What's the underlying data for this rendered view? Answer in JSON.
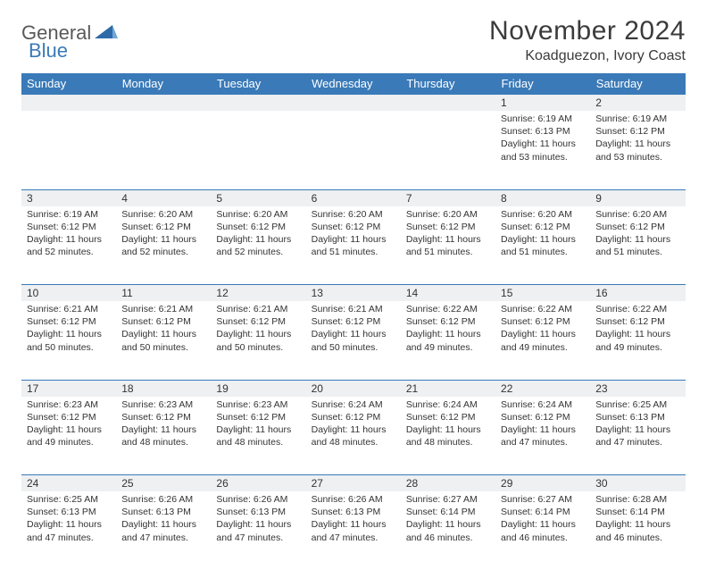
{
  "brand": {
    "part1": "General",
    "part2": "Blue"
  },
  "title": "November 2024",
  "location": "Koadguezon, Ivory Coast",
  "colors": {
    "header_bg": "#3a7ab8",
    "header_text": "#ffffff",
    "daynum_bg": "#eef0f2",
    "border": "#3a7ab8",
    "text": "#333333",
    "title_text": "#3b3b3b"
  },
  "day_headers": [
    "Sunday",
    "Monday",
    "Tuesday",
    "Wednesday",
    "Thursday",
    "Friday",
    "Saturday"
  ],
  "weeks": [
    [
      null,
      null,
      null,
      null,
      null,
      {
        "n": "1",
        "sr": "6:19 AM",
        "ss": "6:13 PM",
        "dl": "11 hours and 53 minutes."
      },
      {
        "n": "2",
        "sr": "6:19 AM",
        "ss": "6:12 PM",
        "dl": "11 hours and 53 minutes."
      }
    ],
    [
      {
        "n": "3",
        "sr": "6:19 AM",
        "ss": "6:12 PM",
        "dl": "11 hours and 52 minutes."
      },
      {
        "n": "4",
        "sr": "6:20 AM",
        "ss": "6:12 PM",
        "dl": "11 hours and 52 minutes."
      },
      {
        "n": "5",
        "sr": "6:20 AM",
        "ss": "6:12 PM",
        "dl": "11 hours and 52 minutes."
      },
      {
        "n": "6",
        "sr": "6:20 AM",
        "ss": "6:12 PM",
        "dl": "11 hours and 51 minutes."
      },
      {
        "n": "7",
        "sr": "6:20 AM",
        "ss": "6:12 PM",
        "dl": "11 hours and 51 minutes."
      },
      {
        "n": "8",
        "sr": "6:20 AM",
        "ss": "6:12 PM",
        "dl": "11 hours and 51 minutes."
      },
      {
        "n": "9",
        "sr": "6:20 AM",
        "ss": "6:12 PM",
        "dl": "11 hours and 51 minutes."
      }
    ],
    [
      {
        "n": "10",
        "sr": "6:21 AM",
        "ss": "6:12 PM",
        "dl": "11 hours and 50 minutes."
      },
      {
        "n": "11",
        "sr": "6:21 AM",
        "ss": "6:12 PM",
        "dl": "11 hours and 50 minutes."
      },
      {
        "n": "12",
        "sr": "6:21 AM",
        "ss": "6:12 PM",
        "dl": "11 hours and 50 minutes."
      },
      {
        "n": "13",
        "sr": "6:21 AM",
        "ss": "6:12 PM",
        "dl": "11 hours and 50 minutes."
      },
      {
        "n": "14",
        "sr": "6:22 AM",
        "ss": "6:12 PM",
        "dl": "11 hours and 49 minutes."
      },
      {
        "n": "15",
        "sr": "6:22 AM",
        "ss": "6:12 PM",
        "dl": "11 hours and 49 minutes."
      },
      {
        "n": "16",
        "sr": "6:22 AM",
        "ss": "6:12 PM",
        "dl": "11 hours and 49 minutes."
      }
    ],
    [
      {
        "n": "17",
        "sr": "6:23 AM",
        "ss": "6:12 PM",
        "dl": "11 hours and 49 minutes."
      },
      {
        "n": "18",
        "sr": "6:23 AM",
        "ss": "6:12 PM",
        "dl": "11 hours and 48 minutes."
      },
      {
        "n": "19",
        "sr": "6:23 AM",
        "ss": "6:12 PM",
        "dl": "11 hours and 48 minutes."
      },
      {
        "n": "20",
        "sr": "6:24 AM",
        "ss": "6:12 PM",
        "dl": "11 hours and 48 minutes."
      },
      {
        "n": "21",
        "sr": "6:24 AM",
        "ss": "6:12 PM",
        "dl": "11 hours and 48 minutes."
      },
      {
        "n": "22",
        "sr": "6:24 AM",
        "ss": "6:12 PM",
        "dl": "11 hours and 47 minutes."
      },
      {
        "n": "23",
        "sr": "6:25 AM",
        "ss": "6:13 PM",
        "dl": "11 hours and 47 minutes."
      }
    ],
    [
      {
        "n": "24",
        "sr": "6:25 AM",
        "ss": "6:13 PM",
        "dl": "11 hours and 47 minutes."
      },
      {
        "n": "25",
        "sr": "6:26 AM",
        "ss": "6:13 PM",
        "dl": "11 hours and 47 minutes."
      },
      {
        "n": "26",
        "sr": "6:26 AM",
        "ss": "6:13 PM",
        "dl": "11 hours and 47 minutes."
      },
      {
        "n": "27",
        "sr": "6:26 AM",
        "ss": "6:13 PM",
        "dl": "11 hours and 47 minutes."
      },
      {
        "n": "28",
        "sr": "6:27 AM",
        "ss": "6:14 PM",
        "dl": "11 hours and 46 minutes."
      },
      {
        "n": "29",
        "sr": "6:27 AM",
        "ss": "6:14 PM",
        "dl": "11 hours and 46 minutes."
      },
      {
        "n": "30",
        "sr": "6:28 AM",
        "ss": "6:14 PM",
        "dl": "11 hours and 46 minutes."
      }
    ]
  ],
  "labels": {
    "sunrise": "Sunrise:",
    "sunset": "Sunset:",
    "daylight": "Daylight:"
  }
}
